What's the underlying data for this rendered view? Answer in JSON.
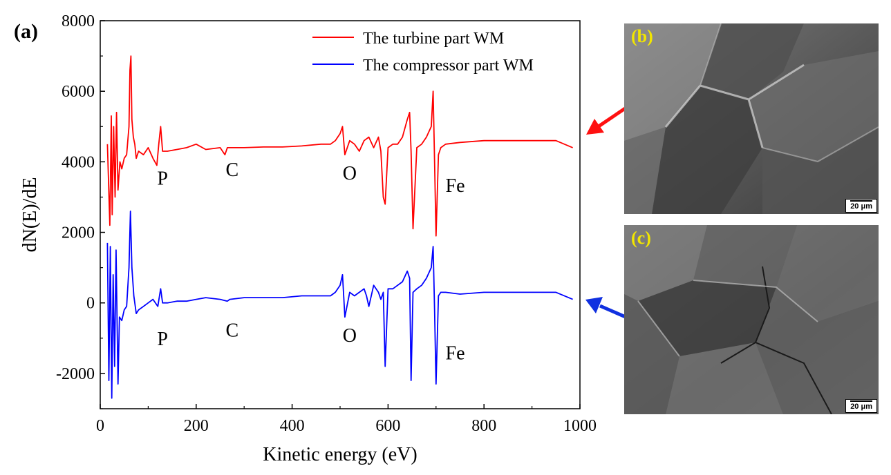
{
  "panel_a_label": "(a)",
  "chart_data": {
    "type": "line",
    "xlabel": "Kinetic energy (eV)",
    "ylabel": "dN(E)/dE",
    "xlim": [
      0,
      1000
    ],
    "ylim": [
      -3000,
      8000
    ],
    "xticks": [
      "0",
      "200",
      "400",
      "600",
      "800",
      "1000"
    ],
    "yticks": [
      "-2000",
      "0",
      "2000",
      "4000",
      "6000",
      "8000"
    ],
    "legend_position": "top-right",
    "series": [
      {
        "name": "The turbine part WM",
        "color": "#ff0000",
        "x": [
          15,
          20,
          23,
          25,
          28,
          31,
          34,
          37,
          41,
          45,
          50,
          55,
          60,
          62,
          64,
          66,
          69,
          72,
          75,
          80,
          90,
          100,
          110,
          118,
          122,
          126,
          130,
          140,
          160,
          180,
          200,
          220,
          250,
          260,
          265,
          270,
          300,
          340,
          380,
          420,
          460,
          480,
          490,
          500,
          505,
          510,
          520,
          530,
          540,
          550,
          560,
          570,
          580,
          585,
          590,
          594,
          600,
          610,
          620,
          630,
          640,
          645,
          648,
          652,
          660,
          670,
          680,
          690,
          694,
          697,
          700,
          705,
          710,
          720,
          750,
          800,
          850,
          900,
          950,
          985
        ],
        "y": [
          4500,
          2200,
          5300,
          2500,
          5000,
          3000,
          5400,
          3200,
          4000,
          3800,
          4100,
          4200,
          5000,
          6600,
          7000,
          5200,
          4700,
          4500,
          4100,
          4300,
          4200,
          4400,
          4100,
          3900,
          4500,
          5000,
          4300,
          4300,
          4350,
          4400,
          4500,
          4350,
          4400,
          4200,
          4400,
          4400,
          4400,
          4420,
          4420,
          4450,
          4500,
          4500,
          4600,
          4800,
          5000,
          4200,
          4600,
          4500,
          4300,
          4600,
          4700,
          4400,
          4700,
          4300,
          3000,
          2800,
          4400,
          4500,
          4500,
          4700,
          5200,
          5400,
          4300,
          2100,
          4400,
          4500,
          4700,
          5000,
          6000,
          4000,
          1900,
          4200,
          4400,
          4500,
          4550,
          4600,
          4600,
          4600,
          4600,
          4400
        ]
      },
      {
        "name": "The compressor part WM",
        "color": "#0000ff",
        "x": [
          15,
          18,
          21,
          24,
          27,
          30,
          33,
          37,
          40,
          45,
          50,
          55,
          60,
          63,
          66,
          70,
          75,
          80,
          90,
          100,
          110,
          120,
          126,
          130,
          140,
          160,
          180,
          200,
          220,
          250,
          265,
          270,
          300,
          340,
          380,
          420,
          460,
          480,
          490,
          500,
          505,
          510,
          520,
          530,
          540,
          550,
          555,
          560,
          570,
          580,
          585,
          590,
          594,
          600,
          610,
          620,
          630,
          640,
          645,
          648,
          652,
          660,
          670,
          680,
          690,
          694,
          697,
          700,
          705,
          710,
          720,
          750,
          800,
          850,
          900,
          950,
          985
        ],
        "y": [
          1700,
          -2200,
          1600,
          -2700,
          800,
          -1800,
          1500,
          -2300,
          -400,
          -500,
          -200,
          -100,
          1000,
          2600,
          1000,
          200,
          -300,
          -200,
          -100,
          0,
          100,
          -100,
          400,
          0,
          0,
          50,
          50,
          100,
          150,
          100,
          50,
          100,
          150,
          150,
          150,
          200,
          200,
          200,
          300,
          500,
          800,
          -400,
          300,
          200,
          300,
          400,
          200,
          -100,
          500,
          300,
          100,
          300,
          -1800,
          400,
          400,
          500,
          600,
          900,
          700,
          -2200,
          300,
          400,
          500,
          700,
          1000,
          1600,
          -200,
          -2300,
          200,
          300,
          300,
          250,
          300,
          300,
          300,
          300,
          100
        ]
      }
    ],
    "annotations": [
      {
        "text": "P",
        "x": 130,
        "y": 3350
      },
      {
        "text": "C",
        "x": 275,
        "y": 3600
      },
      {
        "text": "O",
        "x": 520,
        "y": 3500
      },
      {
        "text": "Fe",
        "x": 740,
        "y": 3150
      },
      {
        "text": "P",
        "x": 130,
        "y": -1200
      },
      {
        "text": "C",
        "x": 275,
        "y": -950
      },
      {
        "text": "O",
        "x": 520,
        "y": -1100
      },
      {
        "text": "Fe",
        "x": 740,
        "y": -1600
      }
    ]
  },
  "sem_b": {
    "label": "(b)",
    "scale": "20 μm"
  },
  "sem_c": {
    "label": "(c)",
    "scale": "20 μm"
  },
  "colors": {
    "turbine": "#ff0000",
    "compressor": "#0000ff",
    "axis": "#000000",
    "sem_label": "#f2e600"
  }
}
